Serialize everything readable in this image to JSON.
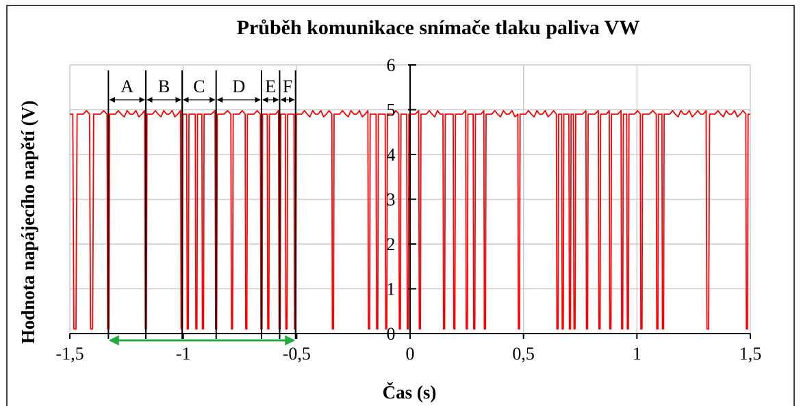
{
  "chart_data": {
    "type": "line",
    "title": "Průběh komunikace snímače tlaku paliva VW",
    "xlabel": "Čas (s)",
    "ylabel": "Hodnota napájecího napětí (V)",
    "xlim": [
      -1.5,
      1.5
    ],
    "ylim": [
      0,
      6
    ],
    "x_ticks": [
      -1.5,
      -1,
      -0.5,
      0,
      0.5,
      1,
      1.5
    ],
    "x_tick_labels": [
      "-1,5",
      "-1",
      "-0,5",
      "0",
      "0,5",
      "1",
      "1,5"
    ],
    "y_ticks": [
      0,
      1,
      2,
      3,
      4,
      5,
      6
    ],
    "y_tick_labels": [
      "0",
      "1",
      "2",
      "3",
      "4",
      "5",
      "6"
    ],
    "grid": true,
    "legend": "none",
    "series": [
      {
        "color": "#ff0000",
        "high_level": 4.9,
        "low_level": 0.1,
        "pulses": [
          [
            -1.487,
            -1.468
          ],
          [
            -1.413,
            -1.395
          ],
          [
            -1.336,
            -1.325
          ],
          [
            -1.17,
            -1.16
          ],
          [
            -1.012,
            -1.002
          ],
          [
            -0.985,
            -0.975
          ],
          [
            -0.947,
            -0.937
          ],
          [
            -0.918,
            -0.908
          ],
          [
            -0.86,
            -0.85
          ],
          [
            -0.79,
            -0.78
          ],
          [
            -0.727,
            -0.717
          ],
          [
            -0.66,
            -0.65
          ],
          [
            -0.63,
            -0.62
          ],
          [
            -0.58,
            -0.57
          ],
          [
            -0.55,
            -0.54
          ],
          [
            -0.512,
            -0.502
          ],
          [
            -0.345,
            -0.335
          ],
          [
            -0.186,
            -0.176
          ],
          [
            -0.15,
            -0.14
          ],
          [
            -0.11,
            -0.1
          ],
          [
            -0.05,
            -0.04
          ],
          [
            -0.015,
            -0.005
          ],
          [
            0.038,
            0.048
          ],
          [
            0.145,
            0.155
          ],
          [
            0.19,
            0.2
          ],
          [
            0.245,
            0.255
          ],
          [
            0.278,
            0.288
          ],
          [
            0.325,
            0.335
          ],
          [
            0.475,
            0.485
          ],
          [
            0.645,
            0.655
          ],
          [
            0.668,
            0.678
          ],
          [
            0.7,
            0.71
          ],
          [
            0.72,
            0.73
          ],
          [
            0.775,
            0.785
          ],
          [
            0.83,
            0.84
          ],
          [
            0.878,
            0.888
          ],
          [
            0.93,
            0.94
          ],
          [
            0.955,
            0.965
          ],
          [
            1.015,
            1.025
          ],
          [
            1.085,
            1.095
          ],
          [
            1.11,
            1.12
          ],
          [
            1.305,
            1.32
          ],
          [
            1.48,
            1.49
          ]
        ]
      }
    ],
    "annotations": {
      "segment_boundaries": [
        -1.33,
        -1.165,
        -1.005,
        -0.855,
        -0.655,
        -0.575,
        -0.505
      ],
      "segment_labels": [
        "A",
        "B",
        "C",
        "D",
        "E",
        "F"
      ],
      "span_arrow": {
        "from": -1.33,
        "to": -0.505,
        "color": "#22aa44"
      }
    }
  }
}
